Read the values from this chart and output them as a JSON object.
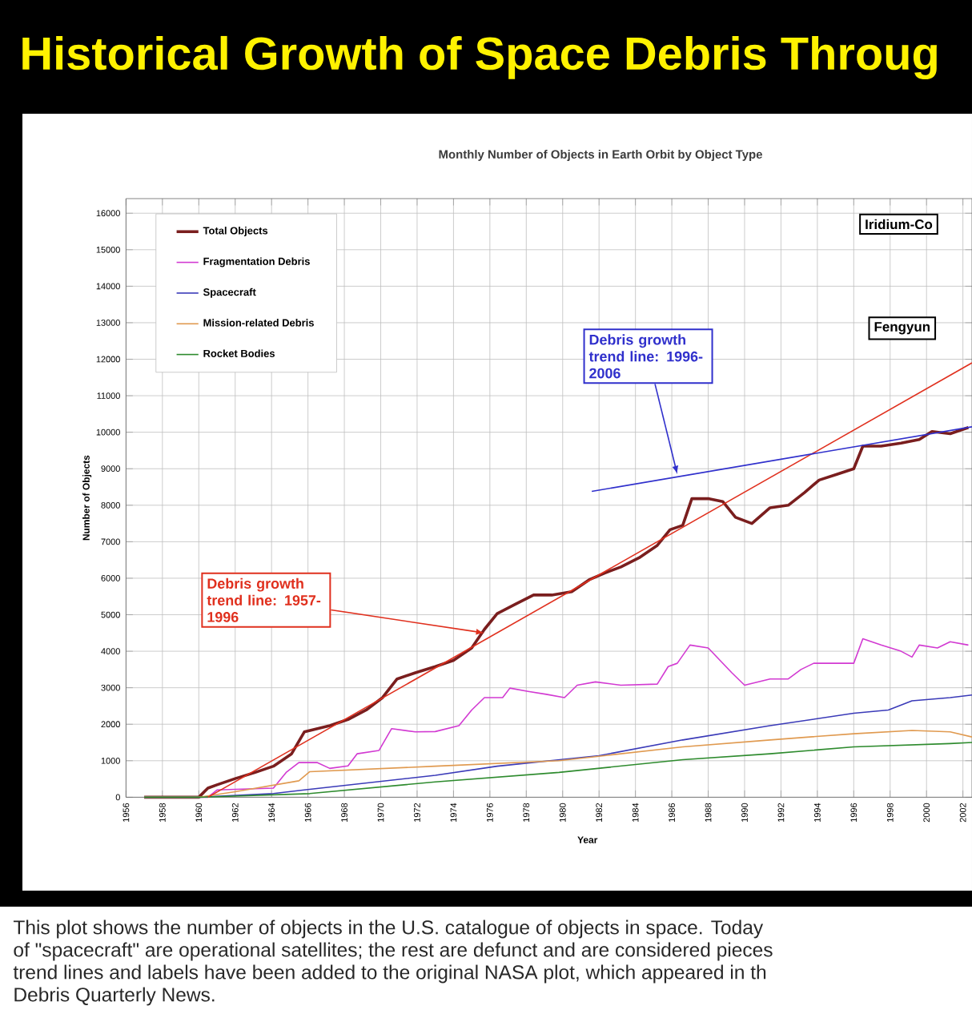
{
  "chart_data": {
    "type": "line",
    "title": "Historical Growth of Space Debris Throug",
    "subtitle": "Monthly Number of Objects in Earth Orbit by Object Type",
    "xlabel": "Year",
    "ylabel": "Number of Objects",
    "xlim": [
      1956,
      2002.5
    ],
    "ylim": [
      0,
      16400
    ],
    "xticks": [
      1956,
      1958,
      1960,
      1962,
      1964,
      1966,
      1968,
      1970,
      1972,
      1974,
      1976,
      1978,
      1980,
      1982,
      1984,
      1986,
      1988,
      1990,
      1992,
      1994,
      1996,
      1998,
      2000,
      2002
    ],
    "yticks": [
      0,
      1000,
      2000,
      3000,
      4000,
      5000,
      6000,
      7000,
      8000,
      9000,
      10000,
      11000,
      12000,
      13000,
      14000,
      15000,
      16000
    ],
    "grid": true,
    "legend": "top left",
    "marker": "none",
    "line_style": "solid",
    "series": [
      {
        "name": "Total Objects",
        "color": "#7a1e1e",
        "x": [
          1957.0,
          1960.0,
          1960.5,
          1961.0,
          1962.0,
          1963.1,
          1964.1,
          1965.1,
          1965.8,
          1967.2,
          1968.2,
          1969.2,
          1970.1,
          1970.9,
          1971.9,
          1973.0,
          1974.0,
          1975.0,
          1975.7,
          1976.4,
          1977.4,
          1978.4,
          1979.4,
          1980.5,
          1981.5,
          1982.3,
          1983.2,
          1984.2,
          1985.2,
          1985.9,
          1986.6,
          1987.1,
          1988.0,
          1988.8,
          1989.5,
          1990.4,
          1991.4,
          1992.4,
          1993.3,
          1994.1,
          1995.1,
          1996.0,
          1996.5,
          1997.5,
          1998.6,
          1999.6,
          2000.3,
          2001.3,
          2002.3
        ],
        "values": [
          0,
          0,
          250,
          340,
          510,
          680,
          850,
          1190,
          1790,
          1960,
          2130,
          2390,
          2730,
          3240,
          3410,
          3580,
          3750,
          4090,
          4600,
          5030,
          5290,
          5540,
          5540,
          5630,
          5970,
          6140,
          6310,
          6560,
          6900,
          7330,
          7450,
          8180,
          8180,
          8100,
          7670,
          7500,
          7930,
          8000,
          8350,
          8690,
          8850,
          9000,
          9620,
          9620,
          9700,
          9800,
          10020,
          9960,
          10130
        ]
      },
      {
        "name": "Fragmentation Debris",
        "color": "#d23ad2",
        "x": [
          1957.0,
          1960.5,
          1961.0,
          1964.1,
          1964.8,
          1965.5,
          1966.5,
          1967.2,
          1968.2,
          1968.7,
          1969.9,
          1970.6,
          1971.9,
          1973.0,
          1974.3,
          1975.0,
          1975.7,
          1976.7,
          1977.1,
          1978.1,
          1979.1,
          1980.1,
          1980.8,
          1981.8,
          1983.2,
          1985.2,
          1985.8,
          1986.3,
          1987.0,
          1988.0,
          1989.3,
          1990.0,
          1991.4,
          1992.4,
          1993.1,
          1993.8,
          1996.0,
          1996.5,
          1997.5,
          1998.6,
          1999.2,
          1999.6,
          2000.6,
          2001.3,
          2002.3
        ],
        "values": [
          0,
          0,
          200,
          250,
          680,
          950,
          950,
          790,
          860,
          1190,
          1280,
          1880,
          1790,
          1800,
          1960,
          2390,
          2730,
          2730,
          2990,
          2900,
          2820,
          2730,
          3070,
          3160,
          3070,
          3100,
          3580,
          3670,
          4170,
          4090,
          3410,
          3070,
          3240,
          3240,
          3500,
          3670,
          3670,
          4340,
          4170,
          4000,
          3840,
          4170,
          4090,
          4260,
          4170
        ]
      },
      {
        "name": "Spacecraft",
        "color": "#3a3ab8",
        "x": [
          1957.0,
          1960.0,
          1964.1,
          1965.8,
          1973.0,
          1976.4,
          1982.0,
          1986.6,
          1991.4,
          1996.0,
          1997.9,
          1999.2,
          2001.3,
          2002.5
        ],
        "values": [
          0,
          0,
          100,
          200,
          600,
          850,
          1140,
          1570,
          1960,
          2300,
          2390,
          2640,
          2730,
          2800
        ]
      },
      {
        "name": "Mission-related Debris",
        "color": "#e09a50",
        "x": [
          1957.0,
          1960.0,
          1962.0,
          1965.5,
          1966.1,
          1973.0,
          1979.8,
          1986.6,
          1991.4,
          1996.0,
          1999.2,
          2001.3,
          2002.5
        ],
        "values": [
          0,
          0,
          150,
          450,
          700,
          850,
          1000,
          1380,
          1570,
          1740,
          1830,
          1790,
          1650
        ]
      },
      {
        "name": "Rocket Bodies",
        "color": "#2e8b2e",
        "x": [
          1957.0,
          1960.0,
          1966.1,
          1973.0,
          1979.8,
          1986.6,
          1991.4,
          1996.0,
          2001.3,
          2002.5
        ],
        "values": [
          0,
          0,
          100,
          420,
          680,
          1030,
          1190,
          1380,
          1470,
          1500
        ]
      },
      {
        "type": "line",
        "color": "#e0301e",
        "x": [
          1960.5,
          2002.5
        ],
        "values": [
          0,
          11900
        ]
      },
      {
        "type": "line",
        "color": "#3030cc",
        "x": [
          1981.6,
          2002.5
        ],
        "values": [
          8380,
          10150
        ]
      }
    ],
    "annotations": [
      {
        "text": "Debris growth trend line: 1957-1996",
        "x": 1975.7,
        "y": 4500
      },
      {
        "text": "Debris growth trend line: 1996-2006",
        "x": 1986.3,
        "y": 8850
      },
      "Iridium-Co",
      "Fengyun",
      "This plot shows the number of objects in the U.S. catalogue of objects in space. Today",
      "of \"spacecraft\" are operational satellites; the rest are defunct and are considered pieces",
      "trend lines and labels have been added to the original NASA plot, which appeared in th",
      "Debris Quarterly News."
    ]
  }
}
